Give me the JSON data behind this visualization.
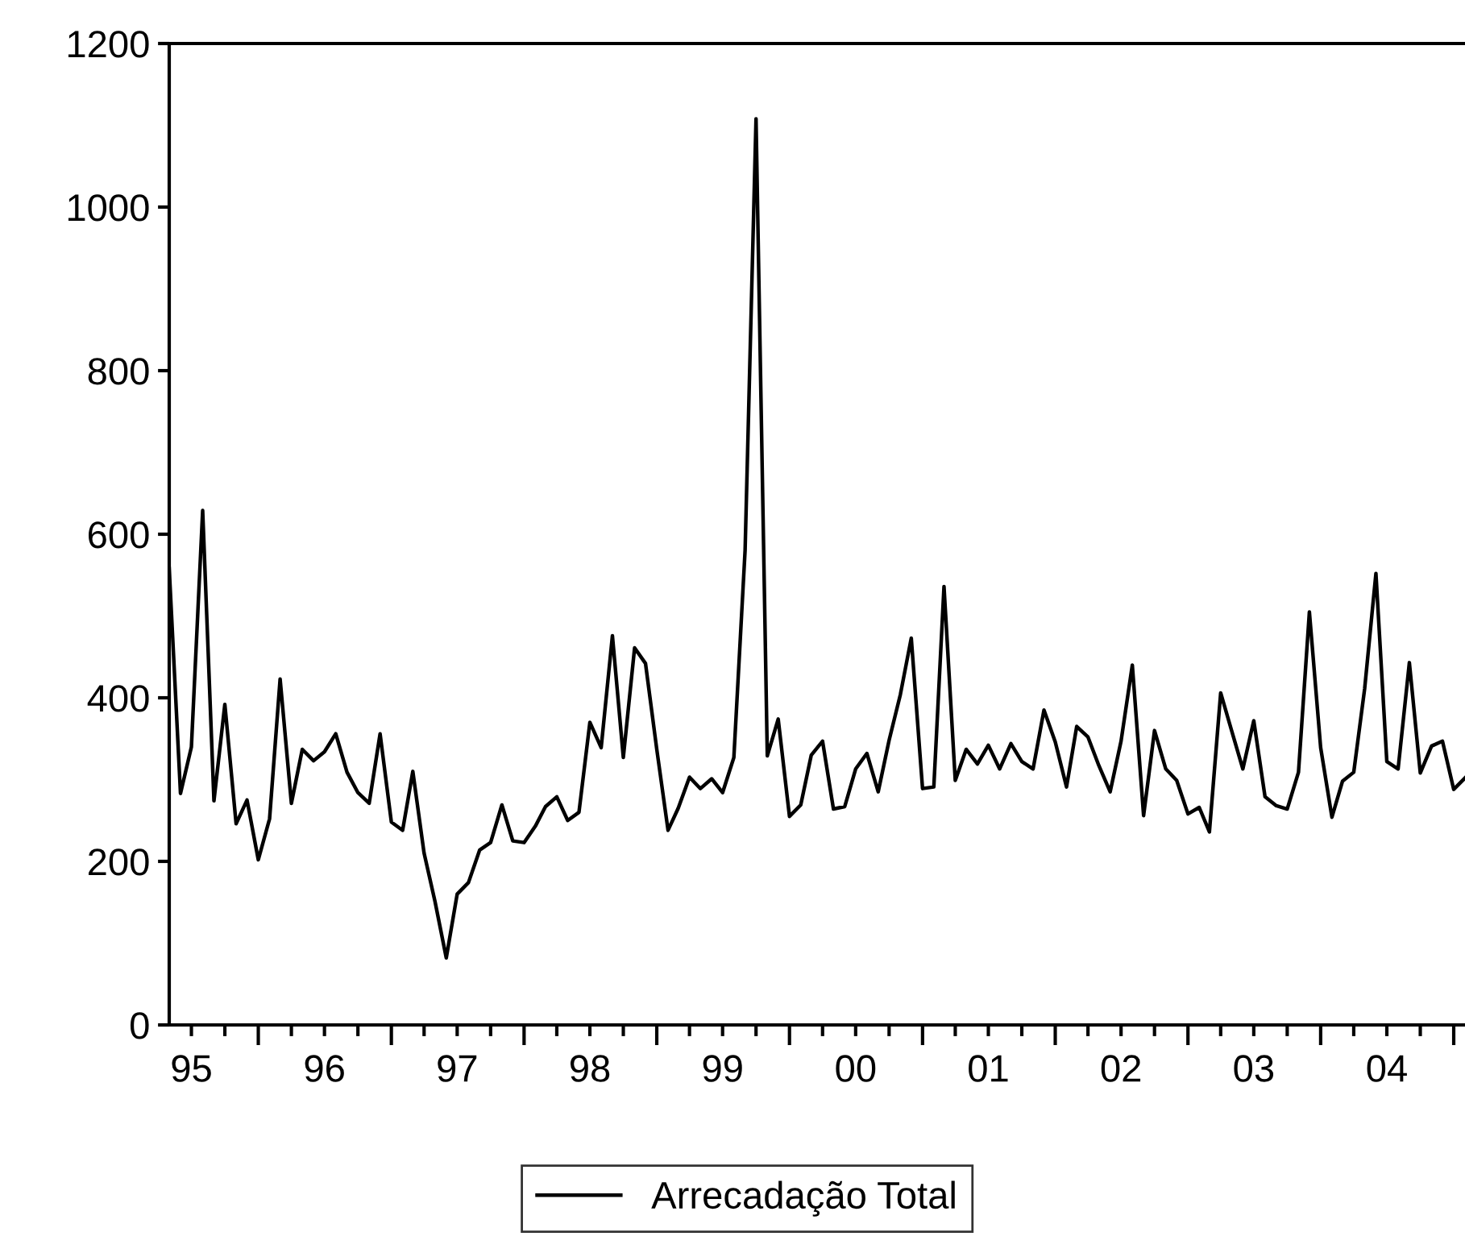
{
  "chart_data": {
    "type": "line",
    "x": [
      "1995-05",
      "1995-06",
      "1995-07",
      "1995-08",
      "1995-09",
      "1995-10",
      "1995-11",
      "1995-12",
      "1996-01",
      "1996-02",
      "1996-03",
      "1996-04",
      "1996-05",
      "1996-06",
      "1996-07",
      "1996-08",
      "1996-09",
      "1996-10",
      "1996-11",
      "1996-12",
      "1997-01",
      "1997-02",
      "1997-03",
      "1997-04",
      "1997-05",
      "1997-06",
      "1997-07",
      "1997-08",
      "1997-09",
      "1997-10",
      "1997-11",
      "1997-12",
      "1998-01",
      "1998-02",
      "1998-03",
      "1998-04",
      "1998-05",
      "1998-06",
      "1998-07",
      "1998-08",
      "1998-09",
      "1998-10",
      "1998-11",
      "1998-12",
      "1999-01",
      "1999-02",
      "1999-03",
      "1999-04",
      "1999-05",
      "1999-06",
      "1999-07",
      "1999-08",
      "1999-09",
      "1999-10",
      "1999-11",
      "1999-12",
      "2000-01",
      "2000-02",
      "2000-03",
      "2000-04",
      "2000-05",
      "2000-06",
      "2000-07",
      "2000-08",
      "2000-09",
      "2000-10",
      "2000-11",
      "2000-12",
      "2001-01",
      "2001-02",
      "2001-03",
      "2001-04",
      "2001-05",
      "2001-06",
      "2001-07",
      "2001-08",
      "2001-09",
      "2001-10",
      "2001-11",
      "2001-12",
      "2002-01",
      "2002-02",
      "2002-03",
      "2002-04",
      "2002-05",
      "2002-06",
      "2002-07",
      "2002-08",
      "2002-09",
      "2002-10",
      "2002-11",
      "2002-12",
      "2003-01",
      "2003-02",
      "2003-03",
      "2003-04",
      "2003-05",
      "2003-06",
      "2003-07",
      "2003-08",
      "2003-09",
      "2003-10",
      "2003-11",
      "2003-12",
      "2004-01",
      "2004-02",
      "2004-03",
      "2004-04",
      "2004-05",
      "2004-06",
      "2004-07",
      "2004-08",
      "2004-09",
      "2004-10",
      "2004-11",
      "2004-12",
      "2005-01",
      "2005-02"
    ],
    "series": [
      {
        "name": "Arrecadação Total",
        "color": "#000000",
        "values": [
          558,
          283,
          340,
          629,
          274,
          392,
          246,
          275,
          202,
          252,
          423,
          271,
          337,
          323,
          334,
          356,
          309,
          284,
          271,
          356,
          248,
          238,
          310,
          210,
          151,
          82,
          160,
          174,
          214,
          223,
          269,
          225,
          223,
          243,
          267,
          279,
          250,
          260,
          370,
          339,
          476,
          327,
          461,
          442,
          337,
          238,
          265,
          303,
          289,
          301,
          284,
          327,
          581,
          1108,
          329,
          374,
          255,
          269,
          330,
          347,
          264,
          267,
          313,
          332,
          285,
          348,
          404,
          473,
          289,
          291,
          536,
          299,
          337,
          319,
          342,
          313,
          344,
          322,
          313,
          385,
          346,
          291,
          365,
          352,
          317,
          285,
          347,
          440,
          256,
          360,
          313,
          299,
          258,
          266,
          236,
          406,
          360,
          313,
          372,
          279,
          268,
          264,
          309,
          505,
          339,
          254,
          298,
          309,
          411,
          552,
          322,
          313,
          443,
          308,
          341,
          347,
          288,
          302
        ]
      }
    ],
    "xlim": [
      "1995-05-01",
      "2005-02-01"
    ],
    "xticks": [
      {
        "value": "1995-07-01",
        "label": "95"
      },
      {
        "value": "1995-10-01",
        "label": null
      },
      {
        "value": "1996-01-01",
        "label": null
      },
      {
        "value": "1996-04-01",
        "label": null
      },
      {
        "value": "1996-07-01",
        "label": "96"
      },
      {
        "value": "1996-10-01",
        "label": null
      },
      {
        "value": "1997-01-01",
        "label": null
      },
      {
        "value": "1997-04-01",
        "label": null
      },
      {
        "value": "1997-07-01",
        "label": "97"
      },
      {
        "value": "1997-10-01",
        "label": null
      },
      {
        "value": "1998-01-01",
        "label": null
      },
      {
        "value": "1998-04-01",
        "label": null
      },
      {
        "value": "1998-07-01",
        "label": "98"
      },
      {
        "value": "1998-10-01",
        "label": null
      },
      {
        "value": "1999-01-01",
        "label": null
      },
      {
        "value": "1999-04-01",
        "label": null
      },
      {
        "value": "1999-07-01",
        "label": "99"
      },
      {
        "value": "1999-10-01",
        "label": null
      },
      {
        "value": "2000-01-01",
        "label": null
      },
      {
        "value": "2000-04-01",
        "label": null
      },
      {
        "value": "2000-07-01",
        "label": "00"
      },
      {
        "value": "2000-10-01",
        "label": null
      },
      {
        "value": "2001-01-01",
        "label": null
      },
      {
        "value": "2001-04-01",
        "label": null
      },
      {
        "value": "2001-07-01",
        "label": "01"
      },
      {
        "value": "2001-10-01",
        "label": null
      },
      {
        "value": "2002-01-01",
        "label": null
      },
      {
        "value": "2002-04-01",
        "label": null
      },
      {
        "value": "2002-07-01",
        "label": "02"
      },
      {
        "value": "2002-10-01",
        "label": null
      },
      {
        "value": "2003-01-01",
        "label": null
      },
      {
        "value": "2003-04-01",
        "label": null
      },
      {
        "value": "2003-07-01",
        "label": "03"
      },
      {
        "value": "2003-10-01",
        "label": null
      },
      {
        "value": "2004-01-01",
        "label": null
      },
      {
        "value": "2004-04-01",
        "label": null
      },
      {
        "value": "2004-07-01",
        "label": "04"
      },
      {
        "value": "2004-10-01",
        "label": null
      },
      {
        "value": "2005-01-01",
        "label": null
      }
    ],
    "ylim": [
      0,
      1200
    ],
    "yticks": [
      0,
      200,
      400,
      600,
      800,
      1000,
      1200
    ],
    "grid": false,
    "legend": "bottom",
    "line_style": "solid",
    "marker": "none"
  }
}
